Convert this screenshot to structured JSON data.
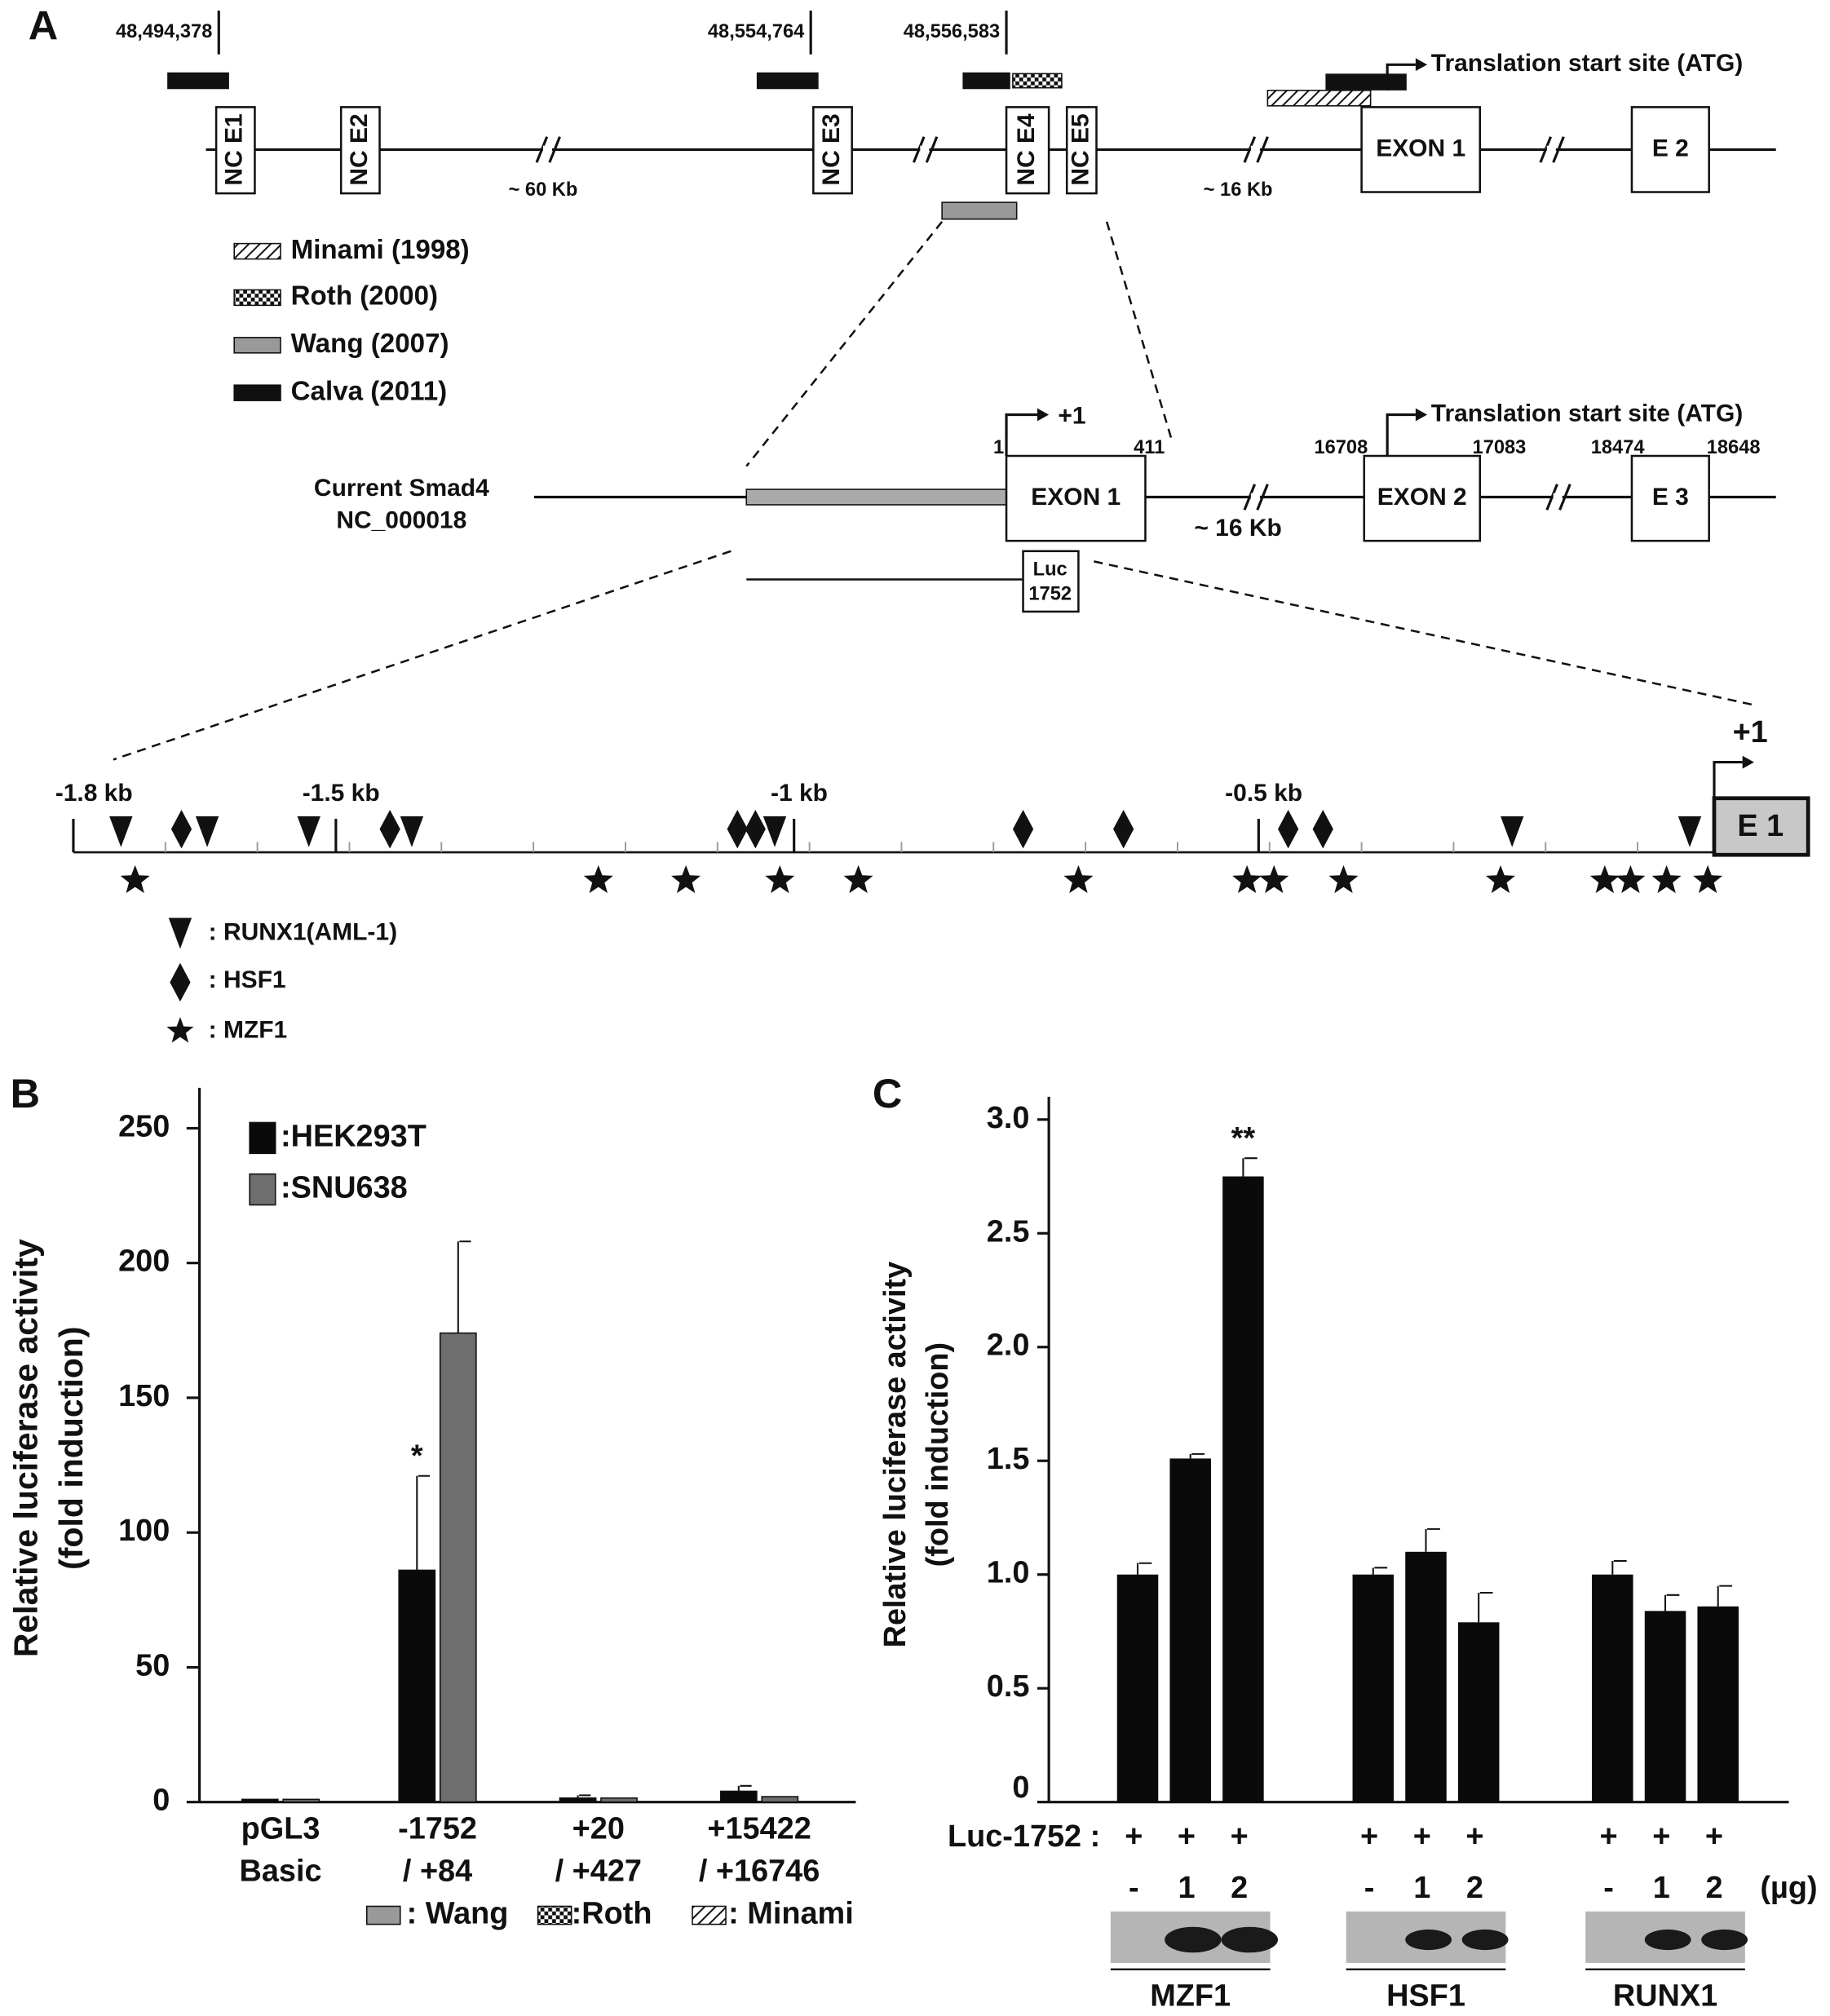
{
  "panel_labels": [
    "A",
    "B",
    "C"
  ],
  "panel_a": {
    "coords": [
      "48,494,378",
      "48,554,764",
      "48,556,583"
    ],
    "top_exons": [
      "NC E1",
      "NC E2",
      "NC E3",
      "NC E4",
      "NC E5",
      "EXON 1",
      "E 2"
    ],
    "gaps": [
      "~ 60 Kb",
      "~ 16 Kb"
    ],
    "tss": "Translation start site (ATG)",
    "legend": [
      "Minami (1998)",
      "Roth (2000)",
      "Wang (2007)",
      "Calva (2011)"
    ],
    "current": {
      "name": [
        "Current Smad4",
        "NC_000018"
      ],
      "plus1": "+1",
      "positions": [
        "1",
        "411",
        "16708",
        "17083",
        "18474",
        "18648"
      ],
      "exons": [
        "EXON 1",
        "EXON 2",
        "E 3"
      ],
      "gap": "~ 16 Kb",
      "tss": "Translation start site (ATG)",
      "luc": [
        "Luc",
        "1752"
      ]
    },
    "promoter": {
      "kb_labels": [
        "-1.8 kb",
        "-1.5 kb",
        "-1 kb",
        "-0.5 kb"
      ],
      "plus1": "+1",
      "exon": "E 1",
      "key": [
        ": RUNX1(AML-1)",
        ": HSF1",
        ": MZF1"
      ]
    }
  },
  "chart_data": [
    {
      "type": "bar",
      "ylabel": [
        "Relative luciferase activity",
        "(fold induction)"
      ],
      "categories": [
        [
          "pGL3",
          "Basic"
        ],
        [
          "-1752",
          "/ +84"
        ],
        [
          "+20",
          "/ +427"
        ],
        [
          "+15422",
          "/ +16746"
        ]
      ],
      "series": [
        {
          "name": ":HEK293T",
          "color": "#0a0a0a",
          "values": [
            1,
            86,
            1.5,
            4
          ],
          "errors": [
            0,
            35,
            1,
            2
          ]
        },
        {
          "name": ":SNU638",
          "color": "#6e6e6e",
          "values": [
            1,
            174,
            1.5,
            2
          ],
          "errors": [
            0,
            34,
            0,
            0
          ]
        }
      ],
      "annotations": [
        {
          "series": 0,
          "index": 1,
          "text": "*"
        }
      ],
      "construct_legend": [
        ": Wang",
        ":Roth",
        ": Minami"
      ],
      "ylim": [
        0,
        265
      ],
      "yticks": [
        0,
        50,
        100,
        150,
        200,
        250
      ]
    },
    {
      "type": "bar",
      "ylabel": [
        "Relative luciferase activity",
        "(fold induction)"
      ],
      "categories": [
        "-",
        "1",
        "2",
        "-",
        "1",
        "2",
        "-",
        "1",
        "2"
      ],
      "values": [
        1.0,
        1.51,
        2.75,
        1.0,
        1.1,
        0.79,
        1.0,
        0.84,
        0.86
      ],
      "errors": [
        0.05,
        0.02,
        0.08,
        0.03,
        0.1,
        0.13,
        0.06,
        0.07,
        0.09
      ],
      "color": "#0a0a0a",
      "annotations": [
        {
          "index": 2,
          "text": "**"
        }
      ],
      "luc_label": "Luc-1752 :",
      "luc_row": [
        "+",
        "+",
        "+",
        "+",
        "+",
        "+",
        "+",
        "+",
        "+"
      ],
      "dose_unit": "(µg)",
      "groups": [
        "MZF1",
        "HSF1",
        "RUNX1"
      ],
      "ylim": [
        0,
        3.1
      ],
      "yticks": [
        0,
        0.5,
        {
          "value": 1,
          "label": "1.0"
        },
        1.5,
        {
          "value": 2,
          "label": "2.0"
        },
        2.5,
        {
          "value": 3,
          "label": "3.0"
        }
      ]
    }
  ]
}
